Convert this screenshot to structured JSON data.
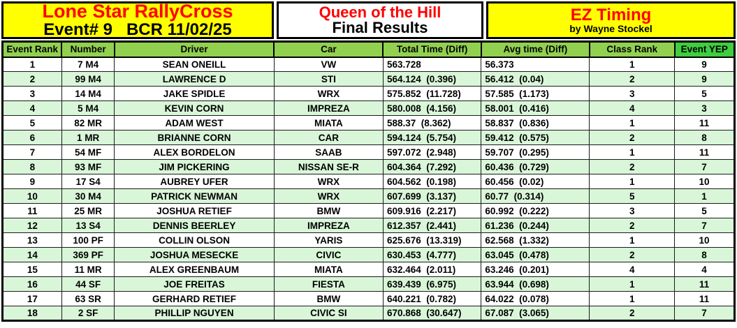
{
  "banner": {
    "left": {
      "title": "Lone Star RallyCross",
      "subtitle": "Event# 9   BCR 11/02/25"
    },
    "center": {
      "title": "Queen of the Hill",
      "subtitle": "Final Results"
    },
    "right": {
      "title": "EZ Timing",
      "subtitle": "by Wayne Stockel"
    }
  },
  "colors": {
    "yellow": "#ffff00",
    "red": "#ff0000",
    "header_green": "#92d050",
    "bright_green": "#3fce3f",
    "row_green": "#d9f6d9"
  },
  "table": {
    "columns": [
      "Event Rank",
      "Number",
      "Driver",
      "Car",
      "Total Time (Diff)",
      "Avg time (Diff)",
      "Class Rank",
      "Event YEP"
    ],
    "column_keys": [
      "event-rank",
      "number",
      "driver",
      "car",
      "total-time",
      "avg-time",
      "class-rank",
      "event-yep"
    ],
    "align_left_columns": [
      4,
      5
    ],
    "rows": [
      [
        "1",
        "7 M4",
        "SEAN ONEILL",
        "VW",
        "563.728",
        "56.373",
        "1",
        "9"
      ],
      [
        "2",
        "99 M4",
        "LAWRENCE D",
        "STI",
        "564.124  (0.396)",
        "56.412  (0.04)",
        "2",
        "9"
      ],
      [
        "3",
        "14 M4",
        "JAKE SPIDLE",
        "WRX",
        "575.852  (11.728)",
        "57.585  (1.173)",
        "3",
        "5"
      ],
      [
        "4",
        "5 M4",
        "KEVIN CORN",
        "IMPREZA",
        "580.008  (4.156)",
        "58.001  (0.416)",
        "4",
        "3"
      ],
      [
        "5",
        "82 MR",
        "ADAM WEST",
        "MIATA",
        "588.37  (8.362)",
        "58.837  (0.836)",
        "1",
        "11"
      ],
      [
        "6",
        "1 MR",
        "BRIANNE CORN",
        "CAR",
        "594.124  (5.754)",
        "59.412  (0.575)",
        "2",
        "8"
      ],
      [
        "7",
        "54 MF",
        "ALEX BORDELON",
        "SAAB",
        "597.072  (2.948)",
        "59.707  (0.295)",
        "1",
        "11"
      ],
      [
        "8",
        "93 MF",
        "JIM PICKERING",
        "NISSAN SE-R",
        "604.364  (7.292)",
        "60.436  (0.729)",
        "2",
        "7"
      ],
      [
        "9",
        "17 S4",
        "AUBREY UFER",
        "WRX",
        "604.562  (0.198)",
        "60.456  (0.02)",
        "1",
        "10"
      ],
      [
        "10",
        "30 M4",
        "PATRICK NEWMAN",
        "WRX",
        "607.699  (3.137)",
        "60.77  (0.314)",
        "5",
        "1"
      ],
      [
        "11",
        "25 MR",
        "JOSHUA RETIEF",
        "BMW",
        "609.916  (2.217)",
        "60.992  (0.222)",
        "3",
        "5"
      ],
      [
        "12",
        "13 S4",
        "DENNIS BEERLEY",
        "IMPREZA",
        "612.357  (2.441)",
        "61.236  (0.244)",
        "2",
        "7"
      ],
      [
        "13",
        "100 PF",
        "COLLIN OLSON",
        "YARIS",
        "625.676  (13.319)",
        "62.568  (1.332)",
        "1",
        "10"
      ],
      [
        "14",
        "369 PF",
        "JOSHUA MESECKE",
        "CIVIC",
        "630.453  (4.777)",
        "63.045  (0.478)",
        "2",
        "8"
      ],
      [
        "15",
        "11 MR",
        "ALEX GREENBAUM",
        "MIATA",
        "632.464  (2.011)",
        "63.246  (0.201)",
        "4",
        "4"
      ],
      [
        "16",
        "44 SF",
        "JOE FREITAS",
        "FIESTA",
        "639.439  (6.975)",
        "63.944  (0.698)",
        "1",
        "11"
      ],
      [
        "17",
        "63 SR",
        "GERHARD RETIEF",
        "BMW",
        "640.221  (0.782)",
        "64.022  (0.078)",
        "1",
        "11"
      ],
      [
        "18",
        "2 SF",
        "PHILLIP NGUYEN",
        "CIVIC SI",
        "670.868  (30.647)",
        "67.087  (3.065)",
        "2",
        "7"
      ]
    ]
  }
}
